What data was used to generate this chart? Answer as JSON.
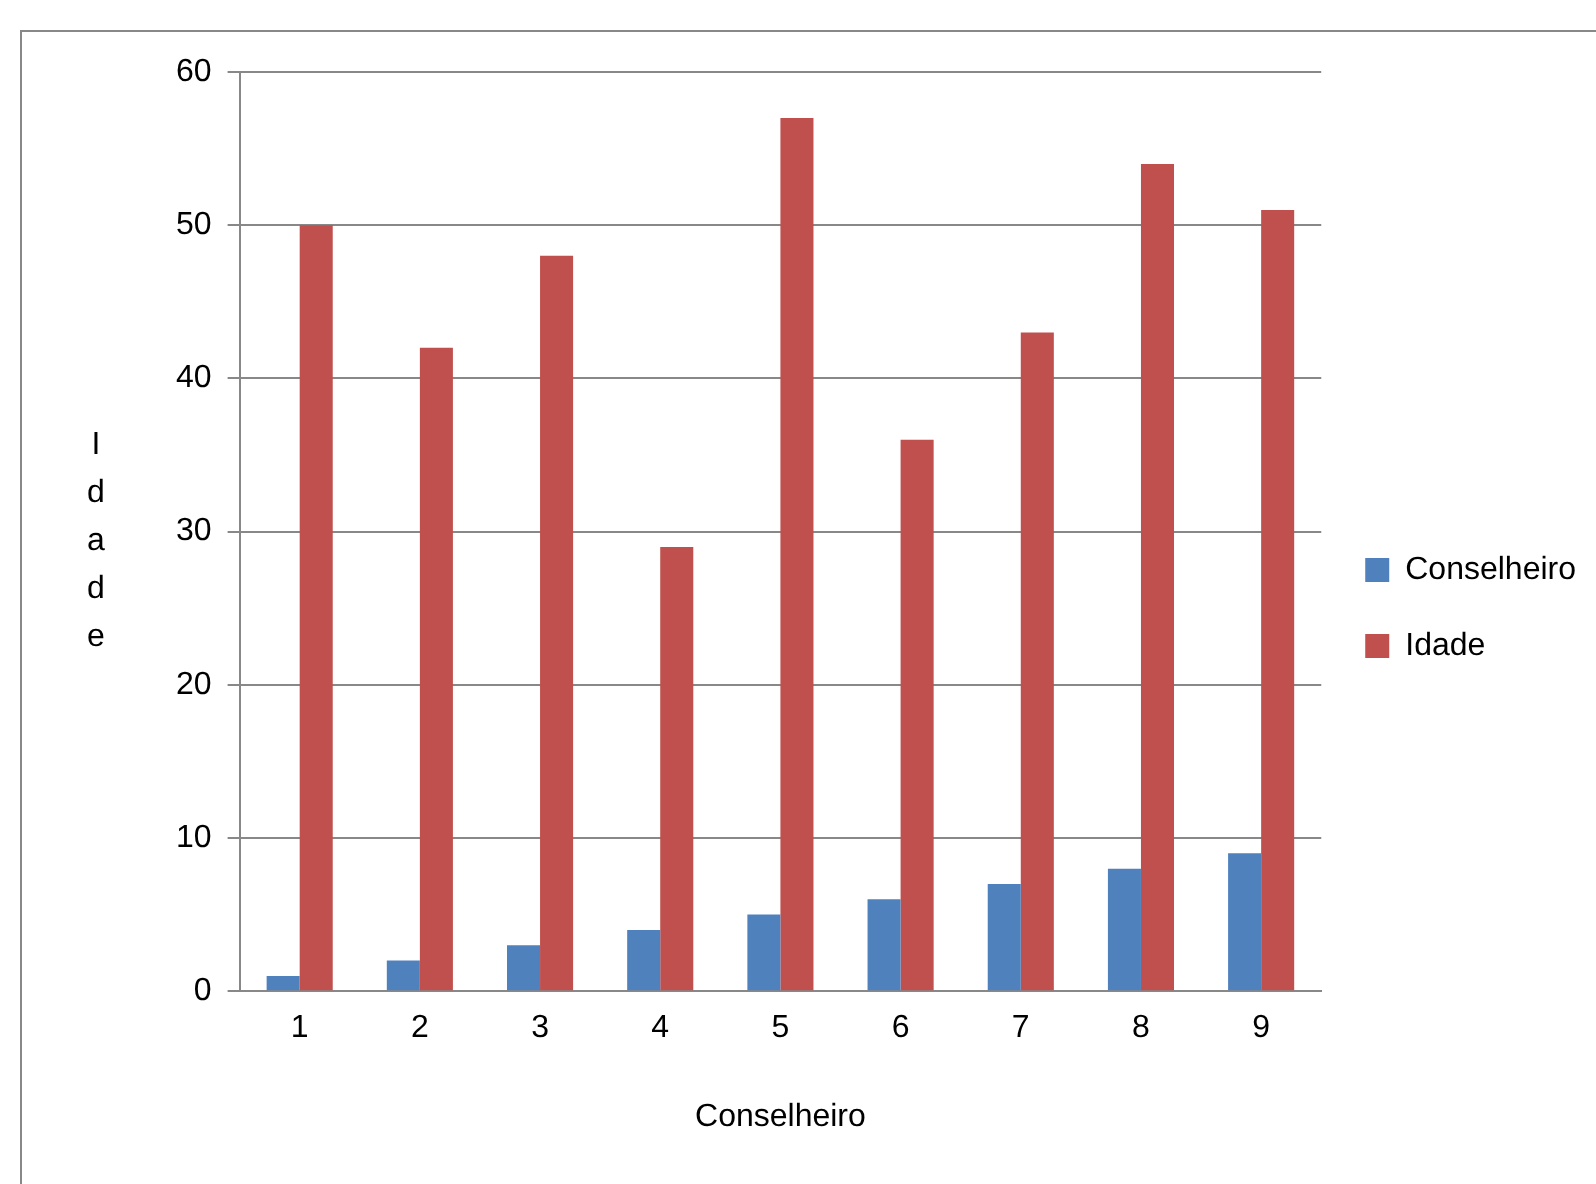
{
  "chart_data": {
    "type": "bar",
    "xlabel": "Conselheiro",
    "ylabel": "Idade",
    "categories": [
      "1",
      "2",
      "3",
      "4",
      "5",
      "6",
      "7",
      "8",
      "9"
    ],
    "series": [
      {
        "name": "Conselheiro",
        "color": "#4f81bd",
        "values": [
          1,
          2,
          3,
          4,
          5,
          6,
          7,
          8,
          9
        ]
      },
      {
        "name": "Idade",
        "color": "#c0504d",
        "values": [
          50,
          42,
          48,
          29,
          57,
          36,
          43,
          54,
          51
        ]
      }
    ],
    "ylim": [
      0,
      60
    ],
    "yticks": [
      0,
      10,
      20,
      30,
      40,
      50,
      60
    ],
    "grid": "y",
    "legend": "right"
  }
}
